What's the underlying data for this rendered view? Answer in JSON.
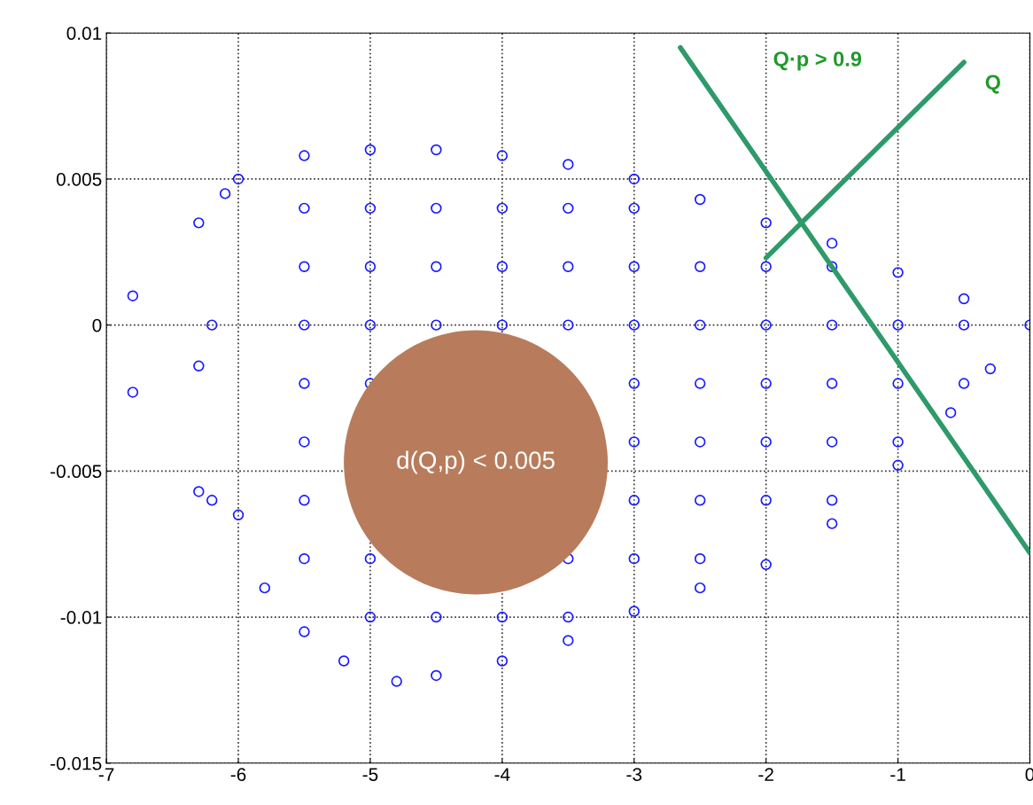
{
  "chart_data": {
    "type": "scatter",
    "xlim": [
      -7,
      0
    ],
    "ylim": [
      -0.015,
      0.01
    ],
    "xticks": [
      -7,
      -6,
      -5,
      -4,
      -3,
      -2,
      -1,
      0
    ],
    "yticks": [
      -0.015,
      -0.01,
      -0.005,
      0,
      0.005,
      0.01
    ],
    "grid": true,
    "series": [
      {
        "color": "#1a1aff",
        "marker": "circle",
        "x": [
          -6.8,
          -6.8,
          -6.3,
          -6.3,
          -6.3,
          -6.2,
          -6.1,
          -6.0,
          -5.5,
          -5.0,
          -4.5,
          -4.0,
          -3.5,
          -3.0,
          -2.5,
          -2.0,
          -1.5,
          -1.0,
          -0.5,
          0.0,
          -0.3,
          -0.6,
          -1.0,
          -1.5,
          -2.0,
          -2.5,
          -3.0,
          -3.5,
          -4.0,
          -4.5,
          -4.8,
          -5.2,
          -5.5,
          -5.8,
          -6.0,
          -6.2,
          -5.5,
          -5.5,
          -5.5,
          -5.5,
          -5.5,
          -5.5,
          -5.5,
          -5.0,
          -5.0,
          -5.0,
          -5.0,
          -5.0,
          -5.0,
          -4.5,
          -4.5,
          -4.5,
          -4.5,
          -4.0,
          -4.0,
          -4.0,
          -4.0,
          -3.5,
          -3.5,
          -3.5,
          -3.5,
          -3.5,
          -3.0,
          -3.0,
          -3.0,
          -3.0,
          -3.0,
          -3.0,
          -3.0,
          -2.5,
          -2.5,
          -2.5,
          -2.5,
          -2.5,
          -2.5,
          -2.0,
          -2.0,
          -2.0,
          -2.0,
          -2.0,
          -1.5,
          -1.5,
          -1.5,
          -1.5,
          -1.5,
          -1.0,
          -1.0,
          -1.0,
          -0.5,
          -0.5
        ],
        "values": [
          0.001,
          -0.0023,
          -0.0014,
          0.0035,
          -0.0057,
          -0.006,
          0.0045,
          0.005,
          0.0058,
          0.006,
          0.006,
          0.0058,
          0.0055,
          0.005,
          0.0043,
          0.0035,
          0.0028,
          0.0018,
          0.0009,
          0.0,
          -0.0015,
          -0.003,
          -0.0048,
          -0.0068,
          -0.0082,
          -0.009,
          -0.0098,
          -0.0108,
          -0.0115,
          -0.012,
          -0.0122,
          -0.0115,
          -0.0105,
          -0.009,
          -0.0065,
          0.0,
          0.004,
          0.002,
          0.0,
          -0.002,
          -0.004,
          -0.006,
          -0.008,
          0.004,
          0.002,
          0.0,
          -0.002,
          -0.008,
          -0.01,
          0.004,
          0.002,
          0.0,
          -0.01,
          0.004,
          0.002,
          0.0,
          -0.01,
          0.004,
          0.002,
          0.0,
          -0.008,
          -0.01,
          0.004,
          0.002,
          0.0,
          -0.002,
          -0.004,
          -0.006,
          -0.008,
          0.002,
          0.0,
          -0.002,
          -0.004,
          -0.006,
          -0.008,
          0.002,
          0.0,
          -0.002,
          -0.004,
          -0.006,
          0.002,
          0.0,
          -0.002,
          -0.004,
          -0.006,
          0.0,
          -0.002,
          -0.004,
          0.0,
          -0.002
        ]
      },
      {
        "type": "bubble",
        "color": "#b87c5c",
        "x": [
          -4.2
        ],
        "values": [
          -0.0047
        ],
        "sizes": [
          1
        ]
      },
      {
        "type": "line",
        "color": "#2e9a6a",
        "x": [
          -2.65,
          0.0
        ],
        "values": [
          0.0095,
          -0.0078
        ]
      },
      {
        "type": "line",
        "color": "#2e9a6a",
        "x": [
          -2.0,
          -0.5
        ],
        "values": [
          0.0023,
          0.009
        ]
      }
    ],
    "annotations": [
      "Q·p > 0.9",
      "Q",
      {
        "text": "d(Q,p) < 0.005",
        "x": -4.2,
        "y": -0.0047
      }
    ]
  }
}
